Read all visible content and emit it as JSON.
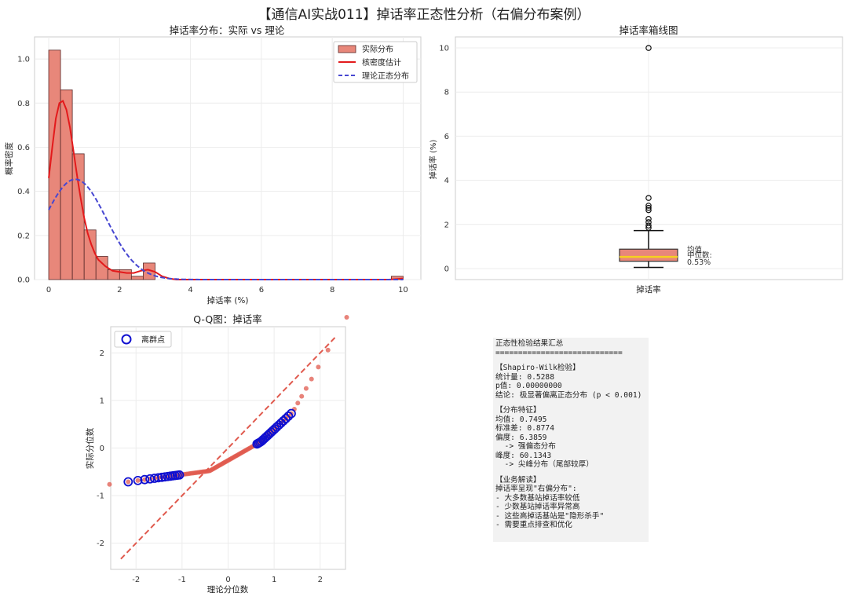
{
  "suptitle": "【通信AI实战011】掉话率正态性分析（右偏分布案例）",
  "chart_data": [
    {
      "type": "bar",
      "title": "掉话率分布：实际 vs 理论",
      "xlabel": "掉话率 (%)",
      "ylabel": "概率密度",
      "xlim": [
        -0.4,
        10.5
      ],
      "ylim": [
        0,
        1.1
      ],
      "xticks": [
        0,
        2,
        4,
        6,
        8,
        10
      ],
      "yticks": [
        0.0,
        0.2,
        0.4,
        0.6,
        0.8,
        1.0
      ],
      "grid": true,
      "legend_position": "top-right",
      "legend": [
        "实际分布",
        "核密度估计",
        "理论正态分布"
      ],
      "histogram": {
        "bin_width": 0.333,
        "bins": [
          {
            "x0": 0.0,
            "density": 1.04
          },
          {
            "x0": 0.333,
            "density": 0.86
          },
          {
            "x0": 0.667,
            "density": 0.57
          },
          {
            "x0": 1.0,
            "density": 0.225
          },
          {
            "x0": 1.333,
            "density": 0.105
          },
          {
            "x0": 1.667,
            "density": 0.045
          },
          {
            "x0": 2.0,
            "density": 0.045
          },
          {
            "x0": 2.333,
            "density": 0.015
          },
          {
            "x0": 2.667,
            "density": 0.075
          },
          {
            "x0": 9.667,
            "density": 0.015
          }
        ]
      },
      "kde": {
        "x": [
          0.0,
          0.1,
          0.2,
          0.3,
          0.4,
          0.5,
          0.6,
          0.7,
          0.8,
          0.9,
          1.0,
          1.1,
          1.2,
          1.3,
          1.4,
          1.6,
          1.8,
          2.0,
          2.2,
          2.4,
          2.6,
          2.8,
          3.0,
          3.2,
          3.4,
          3.6,
          4.0,
          5.0,
          6.0,
          8.0,
          9.6,
          10.0
        ],
        "y": [
          0.46,
          0.6,
          0.73,
          0.8,
          0.81,
          0.77,
          0.69,
          0.58,
          0.47,
          0.37,
          0.28,
          0.21,
          0.16,
          0.12,
          0.09,
          0.06,
          0.04,
          0.035,
          0.03,
          0.03,
          0.04,
          0.045,
          0.035,
          0.015,
          0.005,
          0.0,
          0.0,
          0.0,
          0.0,
          0.0,
          0.0,
          0.005
        ]
      },
      "normal_fit": {
        "mean": 0.7495,
        "std": 0.8774
      }
    },
    {
      "type": "box",
      "title": "掉话率箱线图",
      "ylabel": "掉话率 (%)",
      "category": "掉话率",
      "ylim": [
        -0.5,
        10.5
      ],
      "yticks": [
        0,
        2,
        4,
        6,
        8,
        10
      ],
      "q1": 0.33,
      "median": 0.53,
      "q3": 0.88,
      "mean": 0.75,
      "whisker_low": 0.05,
      "whisker_high": 1.72,
      "outliers": [
        1.85,
        1.95,
        2.1,
        2.25,
        2.65,
        2.75,
        2.85,
        3.2,
        10.0
      ],
      "annotation_labels": [
        "均值",
        "中位数:",
        "0.53%"
      ]
    },
    {
      "type": "scatter",
      "title": "Q-Q图：掉话率",
      "xlabel": "理论分位数",
      "ylabel": "实际分位数",
      "xlim": [
        -2.55,
        2.55
      ],
      "ylim": [
        -2.55,
        2.55
      ],
      "xticks": [
        -2,
        -1,
        0,
        1,
        2
      ],
      "yticks": [
        -2,
        -1,
        0,
        1,
        2
      ],
      "legend": [
        "离群点"
      ],
      "legend_position": "top-left",
      "reference_line": {
        "x": [
          -2.33,
          2.33
        ],
        "y": [
          -2.33,
          2.33
        ]
      }
    }
  ],
  "summary": {
    "lines": [
      "正态性检验结果汇总",
      "============================",
      "",
      "【Shapiro-Wilk检验】",
      "统计量: 0.5288",
      "p值: 0.00000000",
      "结论: 极显著偏离正态分布 (p < 0.001)",
      "",
      "【分布特征】",
      "均值: 0.7495",
      "标准差: 0.8774",
      "偏度: 6.3859",
      "  -> 强偏态分布",
      "峰度: 60.1343",
      "  -> 尖峰分布（尾部较厚）",
      "",
      "【业务解读】",
      "掉话率呈现\"右偏分布\":",
      "- 大多数基站掉话率较低",
      "- 少数基站掉话率异常高",
      "- 这些高掉话基站是\"隐形杀手\"",
      "- 需要重点排查和优化"
    ]
  },
  "colors": {
    "hist_fill": "#e8877a",
    "hist_edge": "#5a2a2a",
    "kde_line": "#e31a1c",
    "normal_line": "#4747d1",
    "box_fill": "#e8877a",
    "median_line": "#f5d020",
    "qq_points": "#e05a4e",
    "outlier_ring": "#1010d0",
    "grid": "#ececec",
    "summary_bg": "#f2f2f2"
  }
}
